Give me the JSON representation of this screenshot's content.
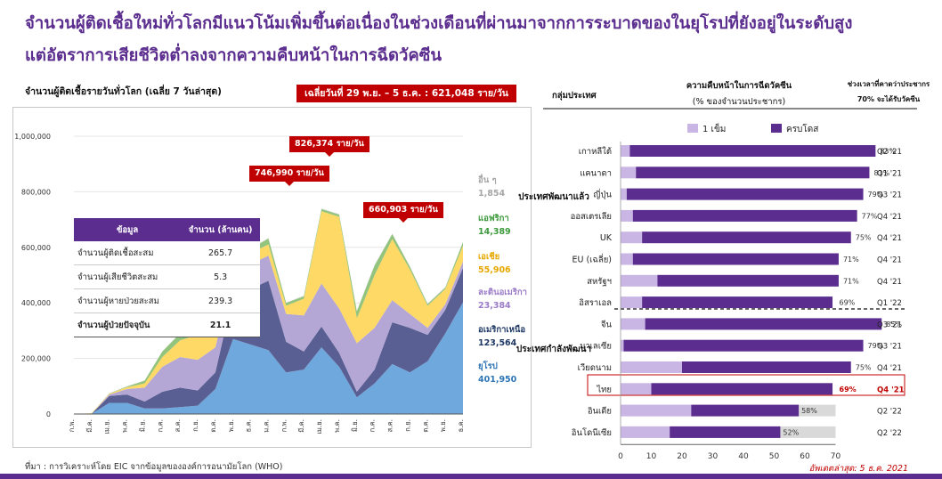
{
  "headline": {
    "line1": "จำนวนผู้ติดเชื้อใหม่ทั่วโลกมีแนวโน้มเพิ่มขึ้นต่อเนื่องในช่วงเดือนที่ผ่านมาจากการระบาดของในยุโรปที่ยังอยู่ในระดับสูง",
    "line2": "แต่อัตราการเสียชีวิตต่ำลงจากความคืบหน้าในการฉีดวัคซีน"
  },
  "left_title": "จำนวนผู้ติดเชื้อรายวันทั่วโลก (เฉลี่ย 7 วันล่าสุด)",
  "avg_box": "เฉลี่ยวันที่ 29 พ.ย. – 5 ธ.ค. : 621,048 ราย/วัน",
  "summary_table": {
    "headers": [
      "ข้อมูล",
      "จำนวน (ล้านคน)"
    ],
    "rows": [
      {
        "label": "จำนวนผู้ติดเชื้อสะสม",
        "value": "265.7",
        "strong": false
      },
      {
        "label": "จำนวนผู้เสียชีวิตสะสม",
        "value": "5.3",
        "strong": false
      },
      {
        "label": "จำนวนผู้หายป่วยสะสม",
        "value": "239.3",
        "strong": false
      },
      {
        "label": "จำนวนผู้ป่วยปัจจุบัน",
        "value": "21.1",
        "strong": true
      }
    ]
  },
  "peaks": [
    "746,990 ราย/วัน",
    "826,374 ราย/วัน",
    "660,903 ราย/วัน"
  ],
  "colors": {
    "brand": "#5b2d8e",
    "alert": "#c00000",
    "europe": "#6fa8dc",
    "north_america": "#5a5f93",
    "latin_america": "#b4a7d6",
    "asia": "#ffd966",
    "africa": "#93c47d",
    "others": "#d9d9d9",
    "first_dose": "#c9b6e4",
    "fully": "#5b2d8e",
    "goal": "#d9d9d9",
    "label_red": "#c00000"
  },
  "source": "ที่มา : การวิเคราะห์โดย EIC จากข้อมูลขององค์การอนามัยโลก (WHO)",
  "update": "อัพเดตล่าสุด: 5 ธ.ค. 2021",
  "chart_data": [
    {
      "type": "area",
      "stacked": true,
      "x": [
        "ก.พ.",
        "มี.ค.",
        "เม.ย.",
        "พ.ค.",
        "มิ.ย.",
        "ก.ค.",
        "ส.ค.",
        "ก.ย.",
        "ต.ค.",
        "พ.ย.",
        "ธ.ค.",
        "ม.ค.",
        "ก.พ.",
        "มี.ค.",
        "เม.ย.",
        "พ.ค.",
        "มิ.ย.",
        "ก.ค.",
        "ส.ค.",
        "ก.ย.",
        "ต.ค.",
        "พ.ย.",
        "ธ.ค."
      ],
      "ylim": [
        0,
        1000000
      ],
      "yticks": [
        "0",
        "200,000",
        "400,000",
        "600,000",
        "800,000",
        "1,000,000"
      ],
      "series": [
        {
          "name": "ยุโรป",
          "label_value": "401,950",
          "values": [
            0,
            1000,
            40000,
            40000,
            20000,
            20000,
            25000,
            30000,
            90000,
            270000,
            250000,
            230000,
            150000,
            160000,
            240000,
            170000,
            60000,
            110000,
            180000,
            150000,
            190000,
            290000,
            402000
          ]
        },
        {
          "name": "อเมริกาเหนือ",
          "label_value": "123,564",
          "values": [
            0,
            0,
            25000,
            30000,
            25000,
            60000,
            70000,
            55000,
            60000,
            160000,
            200000,
            250000,
            110000,
            65000,
            75000,
            50000,
            20000,
            50000,
            150000,
            160000,
            95000,
            85000,
            124000
          ]
        },
        {
          "name": "ละตินอเมริกา",
          "label_value": "23,384",
          "values": [
            0,
            0,
            5000,
            20000,
            50000,
            90000,
            110000,
            110000,
            90000,
            80000,
            90000,
            90000,
            100000,
            130000,
            155000,
            160000,
            175000,
            150000,
            80000,
            50000,
            25000,
            20000,
            23000
          ]
        },
        {
          "name": "เอเชีย",
          "label_value": "55,906",
          "values": [
            0,
            2000,
            3000,
            6000,
            15000,
            35000,
            60000,
            90000,
            100000,
            60000,
            40000,
            40000,
            30000,
            60000,
            260000,
            330000,
            90000,
            190000,
            220000,
            160000,
            80000,
            55000,
            56000
          ]
        },
        {
          "name": "แอฟริกา",
          "label_value": "14,389",
          "values": [
            0,
            0,
            1000,
            3000,
            10000,
            20000,
            25000,
            15000,
            8000,
            8000,
            15000,
            22000,
            10000,
            9000,
            8000,
            8000,
            25000,
            35000,
            18000,
            10000,
            6000,
            5000,
            14000
          ]
        },
        {
          "name": "อื่น ๆ",
          "label_value": "1,854",
          "values": [
            0,
            0,
            1000,
            1000,
            1000,
            1000,
            2000,
            2000,
            2000,
            2000,
            2000,
            2000,
            2000,
            2000,
            2000,
            2000,
            2000,
            2000,
            2000,
            2000,
            2000,
            2000,
            2000
          ]
        }
      ]
    },
    {
      "type": "bar",
      "stacked": true,
      "title": "ความคืบหน้าในการฉีดวัคซีน",
      "subtitle": "(% ของจำนวนประชากร)",
      "col_group": "กลุ่มประเทศ",
      "col_time": "ช่วงเวลาที่คาดว่าประชากร",
      "col_time2": "70% จะได้รับวัคซีน",
      "legend": [
        "1 เข็ม",
        "ครบโดส"
      ],
      "group_developed": "ประเทศพัฒนาแล้ว",
      "group_developing": "ประเทศกำลังพัฒนา",
      "xlim": [
        0,
        70
      ],
      "xticks": [
        "0",
        "10",
        "20",
        "30",
        "40",
        "50",
        "60",
        "70"
      ],
      "categories": [
        "เกาหลีใต้",
        "แคนาดา",
        "ญี่ปุ่น",
        "ออสเตรเลีย",
        "UK",
        "EU (เฉลี่ย)",
        "สหรัฐฯ",
        "อิสราเอล",
        "จีน",
        "มาเลเซีย",
        "เวียดนาม",
        "ไทย",
        "อินเดีย",
        "อินโดนีเซีย"
      ],
      "first_dose": [
        3,
        5,
        2,
        4,
        7,
        4,
        12,
        7,
        8,
        1,
        20,
        10,
        23,
        16
      ],
      "fully": [
        80,
        76,
        77,
        73,
        68,
        67,
        59,
        62,
        77,
        78,
        55,
        59,
        35,
        36
      ],
      "total_labels": [
        "83%",
        "81%",
        "79%",
        "77%",
        "75%",
        "71%",
        "71%",
        "69%",
        "85%",
        "79%",
        "75%",
        "69%",
        "58%",
        "52%"
      ],
      "goal_shown": [
        false,
        false,
        false,
        false,
        false,
        false,
        false,
        false,
        false,
        false,
        false,
        false,
        true,
        true
      ],
      "expected_quarter": [
        "Q2 '21",
        "Q1 '21",
        "Q3 '21",
        "Q4 '21",
        "Q4 '21",
        "Q4 '21",
        "Q4 '21",
        "Q1 '22",
        "Q3 '21",
        "Q3 '21",
        "Q4 '21",
        "Q4 '21",
        "Q2 '22",
        "Q2 '22"
      ],
      "highlight": "ไทย"
    }
  ]
}
